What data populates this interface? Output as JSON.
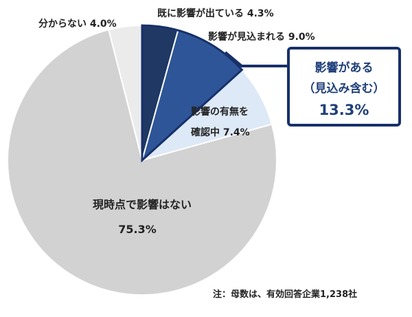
{
  "chart_data": {
    "type": "pie",
    "slices": [
      {
        "label": "既に影響が出ている",
        "value": 4.3,
        "value_text": "4.3%",
        "color": "#1f3864"
      },
      {
        "label": "影響が見込まれる",
        "value": 9.0,
        "value_text": "9.0%",
        "color": "#2e5597"
      },
      {
        "label": "影響の有無を確認中",
        "label_lines": [
          "影響の有無を",
          "確認中"
        ],
        "value": 7.4,
        "value_text": "7.4%",
        "color": "#dde9f7"
      },
      {
        "label": "現時点で影響はない",
        "value": 75.3,
        "value_text": "75.3%",
        "color": "#d2d2d2"
      },
      {
        "label": "分からない",
        "value": 4.0,
        "value_text": "4.0%",
        "color": "#ebebeb"
      }
    ],
    "callout": {
      "line1": "影響がある",
      "line2": "（見込み含む）",
      "value": "13.3%",
      "border_color": "#17306b"
    },
    "note": "注：母数は、有効回答企業1,238社"
  }
}
